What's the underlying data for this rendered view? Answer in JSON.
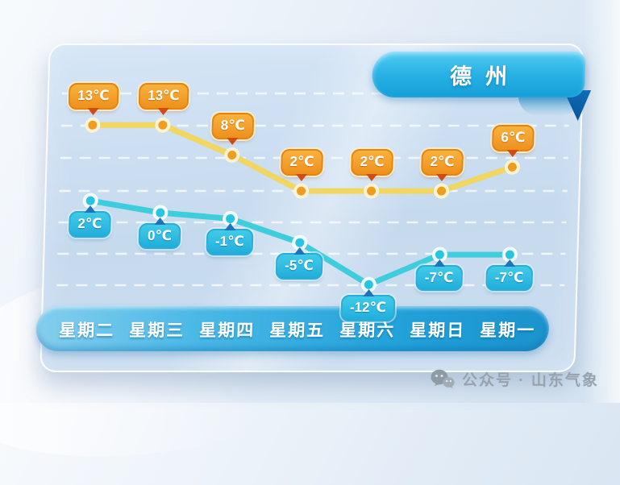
{
  "chart_data": {
    "type": "line",
    "title": "德州",
    "categories": [
      "星期二",
      "星期三",
      "星期四",
      "星期五",
      "星期六",
      "星期日",
      "星期一"
    ],
    "series": [
      {
        "name": "high",
        "values": [
          13,
          13,
          8,
          2,
          2,
          2,
          6
        ],
        "labels": [
          "13℃",
          "13℃",
          "8℃",
          "2℃",
          "2℃",
          "2℃",
          "6℃"
        ]
      },
      {
        "name": "low",
        "values": [
          2,
          0,
          -1,
          -5,
          -12,
          -7,
          -7
        ],
        "labels": [
          "2℃",
          "0℃",
          "-1℃",
          "-5℃",
          "-12℃",
          "-7℃",
          "-7℃"
        ]
      }
    ],
    "unit": "℃",
    "ylim": [
      -14,
      15
    ],
    "grid": "dashed-horizontal-white",
    "legend": "none"
  },
  "colors": {
    "high_line": "#f1d65f",
    "high_point": "#ef9d1e",
    "high_point_ring": "#fcf3d4",
    "high_badge": "#f29a23",
    "low_line": "#3ecddd",
    "low_point": "#28c5e3",
    "low_point_ring": "#f4feff",
    "low_badge": "#2ebde2",
    "banner_blue": "#29b2e5",
    "bar_blue": "#22a1d9"
  },
  "watermark": {
    "icon": "wechat-icon",
    "text": "公众号 · 山东气象"
  }
}
